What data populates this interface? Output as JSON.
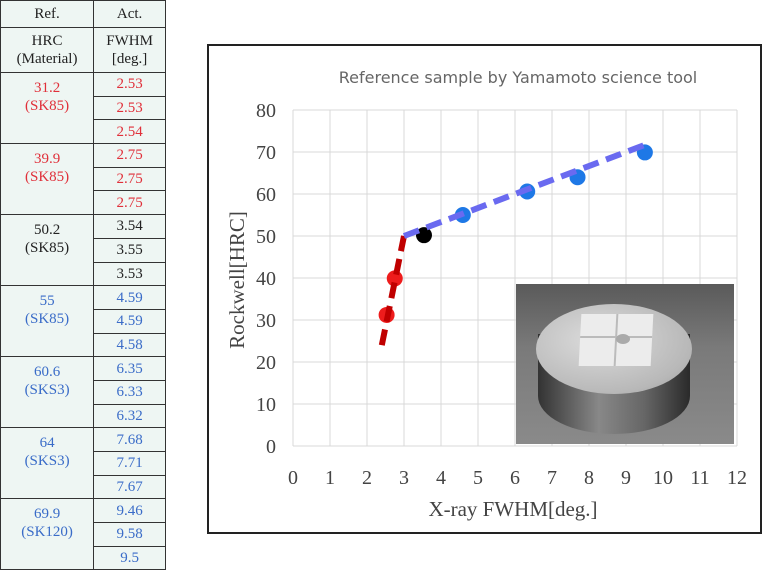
{
  "table": {
    "headers": [
      "Ref.",
      "Act."
    ],
    "subheaders": [
      [
        "HRC",
        "(Material)"
      ],
      [
        "FWHM",
        "[deg.]"
      ]
    ],
    "groups": [
      {
        "hrc": "31.2",
        "material": "(SK85)",
        "color": "#e0303a",
        "fwhm": [
          "2.53",
          "2.53",
          "2.54"
        ]
      },
      {
        "hrc": "39.9",
        "material": "(SK85)",
        "color": "#e0303a",
        "fwhm": [
          "2.75",
          "2.75",
          "2.75"
        ]
      },
      {
        "hrc": "50.2",
        "material": "(SK85)",
        "color": "#222222",
        "fwhm": [
          "3.54",
          "3.55",
          "3.53"
        ]
      },
      {
        "hrc": "55",
        "material": "(SK85)",
        "color": "#3a6cc8",
        "fwhm": [
          "4.59",
          "4.59",
          "4.58"
        ]
      },
      {
        "hrc": "60.6",
        "material": "(SKS3)",
        "color": "#3a6cc8",
        "fwhm": [
          "6.35",
          "6.33",
          "6.32"
        ]
      },
      {
        "hrc": "64",
        "material": "(SKS3)",
        "color": "#3a6cc8",
        "fwhm": [
          "7.68",
          "7.71",
          "7.67"
        ]
      },
      {
        "hrc": "69.9",
        "material": "(SK120)",
        "color": "#3a6cc8",
        "fwhm": [
          "9.46",
          "9.58",
          "9.5"
        ]
      }
    ]
  },
  "chart_data": {
    "type": "scatter",
    "title": "Reference sample by Yamamoto science tool",
    "xlabel": "X-ray FWHM[deg.]",
    "ylabel": "Rockwell[HRC]",
    "xlim": [
      0,
      12
    ],
    "ylim": [
      0,
      80
    ],
    "xticks": [
      "0",
      "1",
      "2",
      "3",
      "4",
      "5",
      "6",
      "7",
      "8",
      "9",
      "10",
      "11",
      "12"
    ],
    "yticks": [
      "0",
      "10",
      "20",
      "30",
      "40",
      "50",
      "60",
      "70",
      "80"
    ],
    "grid": true,
    "points": [
      {
        "x": 2.53,
        "y": 31.2,
        "color": "#ee1c1c"
      },
      {
        "x": 2.75,
        "y": 39.9,
        "color": "#ee1c1c"
      },
      {
        "x": 3.54,
        "y": 50.2,
        "color": "#000000"
      },
      {
        "x": 4.59,
        "y": 55,
        "color": "#1e78e6"
      },
      {
        "x": 6.33,
        "y": 60.6,
        "color": "#1e78e6"
      },
      {
        "x": 7.69,
        "y": 64,
        "color": "#1e78e6"
      },
      {
        "x": 9.51,
        "y": 69.9,
        "color": "#1e78e6"
      }
    ],
    "trendlines": [
      {
        "from": [
          2.4,
          24
        ],
        "to": [
          3.0,
          50
        ],
        "color": "#c00000"
      },
      {
        "from": [
          3.0,
          50
        ],
        "to": [
          9.6,
          72
        ],
        "color": "#6a6af0"
      }
    ]
  }
}
